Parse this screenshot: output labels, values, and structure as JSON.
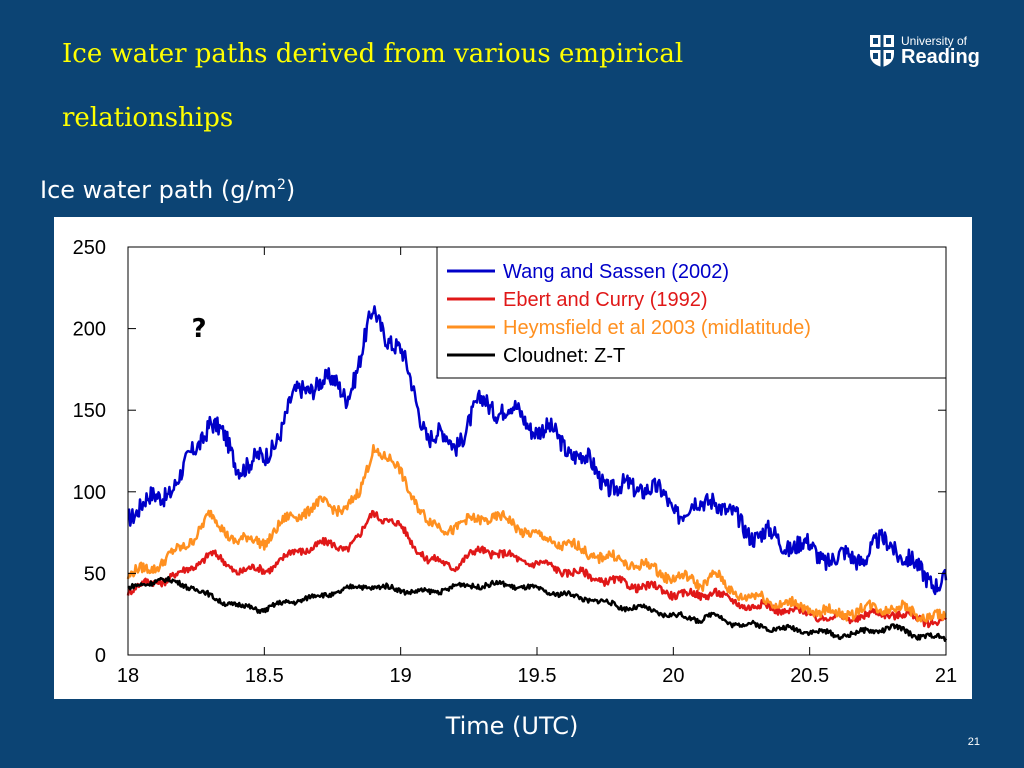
{
  "slide": {
    "title": "Ice water paths derived from various empirical relationships",
    "page_number": "21"
  },
  "logo": {
    "line1": "University of",
    "line2": "Reading",
    "icon": "university-shield-icon"
  },
  "chart_data": {
    "type": "line",
    "ylabel_main": "Ice water path (g/m",
    "ylabel_sup": "2",
    "ylabel_end": ")",
    "xlabel": "Time (UTC)",
    "xlim": [
      18,
      21
    ],
    "ylim": [
      0,
      250
    ],
    "x_ticks": [
      18,
      18.5,
      19,
      19.5,
      20,
      20.5,
      21
    ],
    "x_tick_labels": [
      "18",
      "18.5",
      "19",
      "19.5",
      "20",
      "20.5",
      "21"
    ],
    "y_ticks": [
      0,
      50,
      100,
      150,
      200,
      250
    ],
    "y_tick_labels": [
      "0",
      "50",
      "100",
      "150",
      "200",
      "250"
    ],
    "grid": false,
    "legend_position": "top-right",
    "annotation": "?",
    "x": [
      18.0,
      18.1,
      18.2,
      18.3,
      18.4,
      18.5,
      18.6,
      18.7,
      18.8,
      18.85,
      18.9,
      19.0,
      19.1,
      19.2,
      19.3,
      19.4,
      19.5,
      19.6,
      19.7,
      19.8,
      19.9,
      20.0,
      20.1,
      20.15,
      20.2,
      20.3,
      20.4,
      20.5,
      20.6,
      20.7,
      20.8,
      20.9,
      21.0
    ],
    "series": [
      {
        "name": "Wang and Sassen (2002)",
        "color": "#0000c8",
        "values": [
          88,
          95,
          110,
          145,
          118,
          118,
          155,
          170,
          160,
          180,
          210,
          185,
          135,
          130,
          155,
          150,
          140,
          130,
          115,
          100,
          105,
          90,
          90,
          100,
          85,
          75,
          70,
          65,
          58,
          62,
          70,
          50,
          45
        ]
      },
      {
        "name": "Ebert and Curry (1992)",
        "color": "#e01818",
        "values": [
          40,
          45,
          50,
          62,
          52,
          52,
          62,
          68,
          66,
          72,
          88,
          78,
          58,
          55,
          65,
          60,
          56,
          52,
          48,
          44,
          42,
          38,
          36,
          40,
          33,
          30,
          28,
          25,
          22,
          24,
          26,
          22,
          20
        ]
      },
      {
        "name": "Heymsfield et al 2003 (midlatitude)",
        "color": "#ff9020",
        "values": [
          48,
          55,
          65,
          85,
          70,
          70,
          85,
          92,
          90,
          98,
          128,
          112,
          80,
          78,
          85,
          82,
          72,
          68,
          62,
          58,
          54,
          48,
          44,
          50,
          40,
          35,
          32,
          28,
          25,
          28,
          30,
          25,
          22
        ]
      },
      {
        "name": "Cloudnet: Z-T",
        "color": "#000000",
        "values": [
          40,
          46,
          44,
          36,
          30,
          28,
          33,
          36,
          40,
          42,
          42,
          40,
          38,
          42,
          43,
          43,
          40,
          37,
          34,
          30,
          28,
          24,
          22,
          25,
          20,
          18,
          16,
          15,
          12,
          14,
          17,
          12,
          10
        ]
      }
    ]
  }
}
